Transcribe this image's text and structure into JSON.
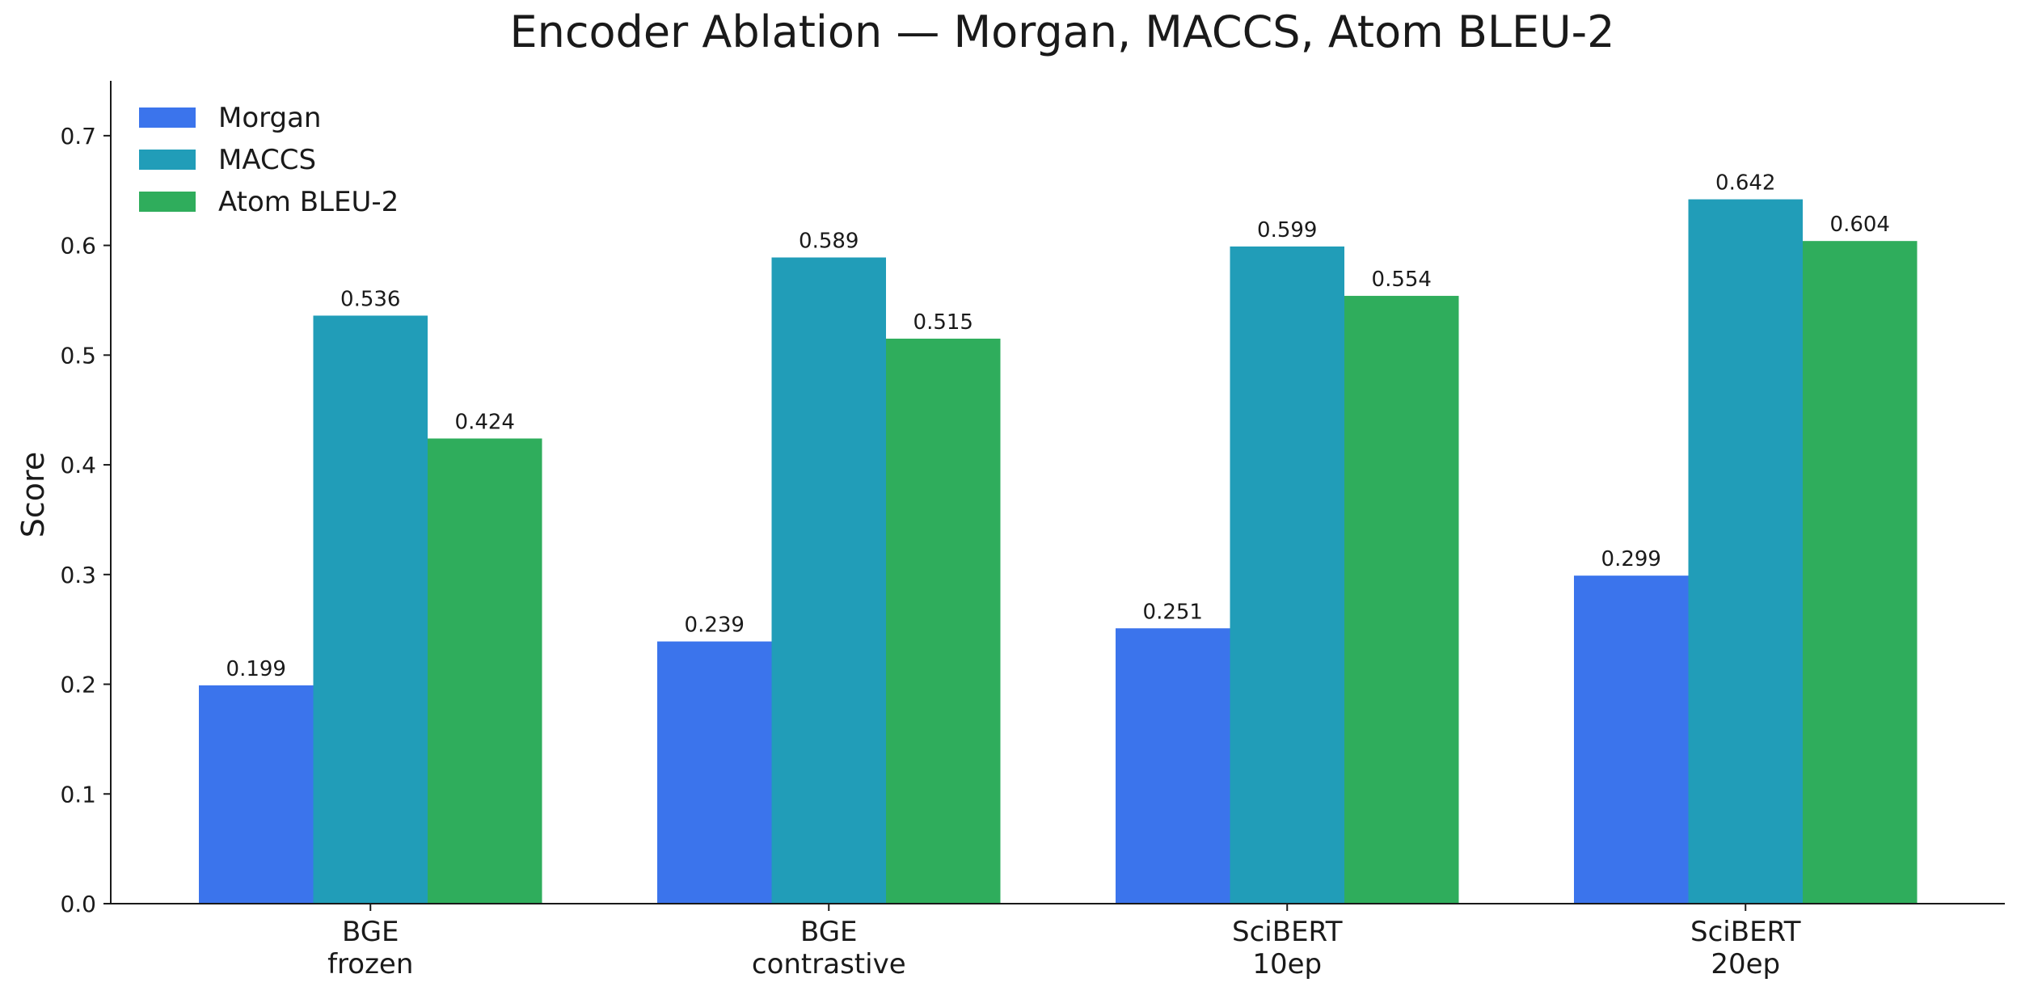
{
  "chart_data": {
    "type": "bar",
    "title": "Encoder Ablation — Morgan, MACCS, Atom BLEU-2",
    "xlabel": "",
    "ylabel": "Score",
    "ylim": [
      0,
      0.75
    ],
    "yticks": [
      "0.0",
      "0.1",
      "0.2",
      "0.3",
      "0.4",
      "0.5",
      "0.6",
      "0.7"
    ],
    "grid": false,
    "legend_position": "top-left",
    "categories": [
      [
        "BGE",
        "frozen"
      ],
      [
        "BGE",
        "contrastive"
      ],
      [
        "SciBERT",
        "10ep"
      ],
      [
        "SciBERT",
        "20ep"
      ]
    ],
    "series": [
      {
        "name": "Morgan",
        "color": "#3b74ec",
        "values": [
          0.199,
          0.239,
          0.251,
          0.299
        ]
      },
      {
        "name": "MACCS",
        "color": "#219db8",
        "values": [
          0.536,
          0.589,
          0.599,
          0.642
        ]
      },
      {
        "name": "Atom BLEU-2",
        "color": "#2fad5c",
        "values": [
          0.424,
          0.515,
          0.554,
          0.604
        ]
      }
    ]
  }
}
